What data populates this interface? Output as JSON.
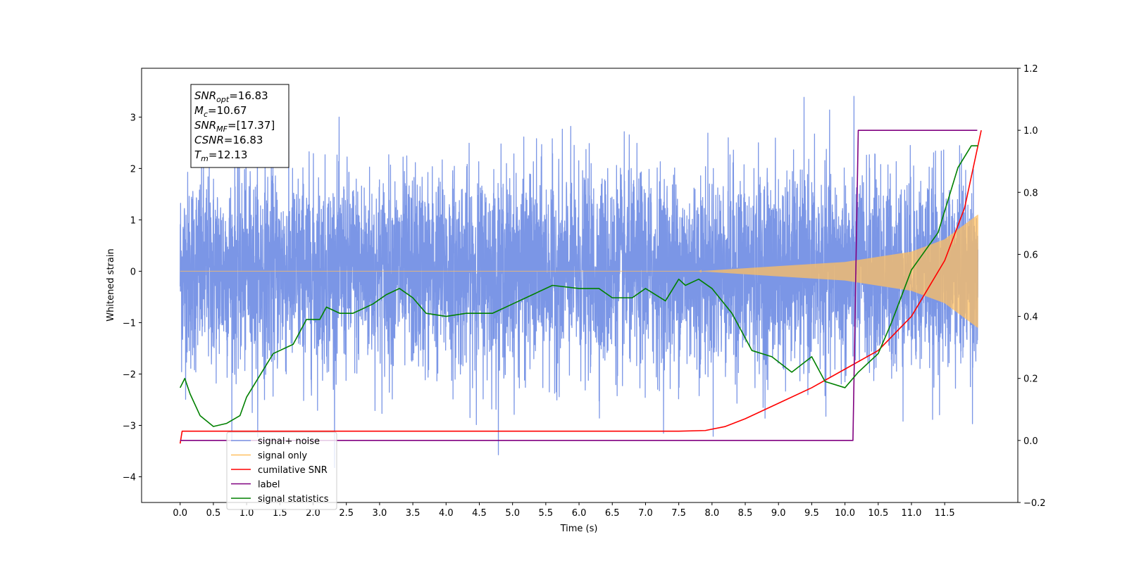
{
  "chart_data": {
    "type": "line",
    "xlabel": "Time (s)",
    "ylabel": "Whitened strain",
    "xlim": [
      -0.58,
      12.6
    ],
    "ylim": [
      -4.5,
      3.95
    ],
    "y2lim": [
      -0.2,
      1.2
    ],
    "x_ticks": [
      0.0,
      0.5,
      1.0,
      1.5,
      2.0,
      2.5,
      3.0,
      3.5,
      4.0,
      4.5,
      5.0,
      5.5,
      6.0,
      6.5,
      7.0,
      7.5,
      8.0,
      8.5,
      9.0,
      9.5,
      10.0,
      10.5,
      11.0,
      11.5
    ],
    "x_tick_labels": [
      "0.0",
      "0.5",
      "1.0",
      "1.5",
      "2.0",
      "2.5",
      "3.0",
      "3.5",
      "4.0",
      "4.5",
      "5.0",
      "5.5",
      "6.0",
      "6.5",
      "7.0",
      "7.5",
      "8.0",
      "8.5",
      "9.0",
      "9.5",
      "10.0",
      "10.5",
      "11.0",
      "11.5"
    ],
    "y_ticks": [
      3,
      2,
      1,
      0,
      -1,
      -2,
      -3,
      -4
    ],
    "y_tick_labels": [
      "3",
      "2",
      "1",
      "0",
      "−1",
      "−2",
      "−3",
      "−4"
    ],
    "y2_ticks": [
      1.2,
      1.0,
      0.8,
      0.6,
      0.4,
      0.2,
      0.0,
      -0.2
    ],
    "y2_tick_labels": [
      "1.2",
      "1.0",
      "0.8",
      "0.6",
      "0.4",
      "0.2",
      "0.0",
      "−0.2"
    ],
    "grid": false,
    "legend_position": "lower-left",
    "series": [
      {
        "name": "signal+ noise",
        "axis": "left",
        "color": "#7b96e6",
        "description": "whitened strain noise, approx. zero-mean with spread ~±2.5, spikes to ~3.4 and ~-4.1",
        "t_start": 0.0,
        "t_end": 12.0,
        "noise_sigma": 0.95
      },
      {
        "name": "signal only",
        "axis": "left",
        "color": "#ffbf60",
        "description": "chirp signal, flat near 0 until ~7.8 s then amplitude growing to ~1.1 at 12.0 s",
        "amplitude_points": [
          [
            0.0,
            0.0
          ],
          [
            7.8,
            0.0
          ],
          [
            9.0,
            0.1
          ],
          [
            10.0,
            0.18
          ],
          [
            11.0,
            0.38
          ],
          [
            11.5,
            0.62
          ],
          [
            12.0,
            1.1
          ]
        ]
      },
      {
        "name": "cumilative SNR",
        "axis": "right",
        "color": "#ff0000",
        "points": [
          [
            0.0,
            -0.01
          ],
          [
            0.03,
            0.03
          ],
          [
            7.5,
            0.03
          ],
          [
            7.9,
            0.032
          ],
          [
            8.2,
            0.045
          ],
          [
            8.5,
            0.07
          ],
          [
            9.0,
            0.12
          ],
          [
            9.5,
            0.17
          ],
          [
            10.0,
            0.23
          ],
          [
            10.5,
            0.29
          ],
          [
            11.0,
            0.4
          ],
          [
            11.5,
            0.58
          ],
          [
            11.8,
            0.75
          ],
          [
            12.05,
            1.0
          ]
        ]
      },
      {
        "name": "label",
        "axis": "right",
        "color": "#800080",
        "points": [
          [
            0.0,
            0.0
          ],
          [
            10.12,
            0.0
          ],
          [
            10.2,
            1.0
          ],
          [
            11.99,
            1.0
          ]
        ]
      },
      {
        "name": "signal statistics",
        "axis": "right",
        "color": "#008000",
        "points": [
          [
            0.0,
            0.17
          ],
          [
            0.07,
            0.2
          ],
          [
            0.15,
            0.15
          ],
          [
            0.3,
            0.08
          ],
          [
            0.5,
            0.045
          ],
          [
            0.7,
            0.055
          ],
          [
            0.9,
            0.08
          ],
          [
            1.0,
            0.14
          ],
          [
            1.2,
            0.21
          ],
          [
            1.4,
            0.28
          ],
          [
            1.7,
            0.31
          ],
          [
            1.9,
            0.39
          ],
          [
            2.1,
            0.39
          ],
          [
            2.2,
            0.43
          ],
          [
            2.4,
            0.41
          ],
          [
            2.6,
            0.41
          ],
          [
            2.9,
            0.44
          ],
          [
            3.1,
            0.47
          ],
          [
            3.3,
            0.49
          ],
          [
            3.5,
            0.46
          ],
          [
            3.7,
            0.41
          ],
          [
            4.0,
            0.4
          ],
          [
            4.3,
            0.41
          ],
          [
            4.7,
            0.41
          ],
          [
            5.0,
            0.44
          ],
          [
            5.3,
            0.47
          ],
          [
            5.6,
            0.5
          ],
          [
            6.0,
            0.49
          ],
          [
            6.3,
            0.49
          ],
          [
            6.5,
            0.46
          ],
          [
            6.8,
            0.46
          ],
          [
            7.0,
            0.49
          ],
          [
            7.3,
            0.45
          ],
          [
            7.5,
            0.52
          ],
          [
            7.6,
            0.5
          ],
          [
            7.8,
            0.52
          ],
          [
            8.0,
            0.49
          ],
          [
            8.3,
            0.41
          ],
          [
            8.6,
            0.29
          ],
          [
            8.9,
            0.27
          ],
          [
            9.2,
            0.22
          ],
          [
            9.5,
            0.27
          ],
          [
            9.7,
            0.19
          ],
          [
            10.0,
            0.17
          ],
          [
            10.2,
            0.22
          ],
          [
            10.5,
            0.28
          ],
          [
            10.7,
            0.38
          ],
          [
            11.0,
            0.55
          ],
          [
            11.4,
            0.67
          ],
          [
            11.7,
            0.88
          ],
          [
            11.9,
            0.95
          ],
          [
            12.0,
            0.95
          ]
        ]
      }
    ],
    "annotation": {
      "lines": [
        {
          "main": "SNR",
          "sub": "opt",
          "value": "=16.83"
        },
        {
          "main": "M",
          "sub": "c",
          "value": "=10.67"
        },
        {
          "main": "SNR",
          "sub": "MF",
          "value": "=[17.37]"
        },
        {
          "main": "CSNR",
          "sub": "",
          "value": "=16.83"
        },
        {
          "main": "T",
          "sub": "m",
          "value": "=12.13"
        }
      ]
    },
    "legend_entries": [
      {
        "label": "signal+ noise",
        "color": "#7b96e6"
      },
      {
        "label": "signal only",
        "color": "#ffbf60"
      },
      {
        "label": "cumilative SNR",
        "color": "#ff0000"
      },
      {
        "label": "label",
        "color": "#800080"
      },
      {
        "label": "signal statistics",
        "color": "#008000"
      }
    ]
  }
}
